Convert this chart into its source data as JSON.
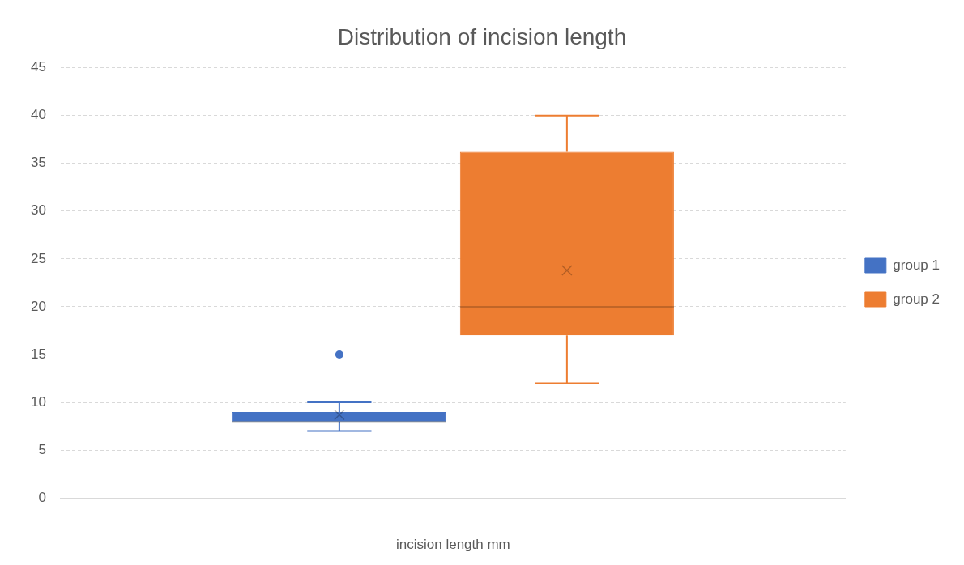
{
  "chart_data": {
    "type": "box",
    "title": "Distribution of incision length",
    "xlabel": "incision length mm",
    "categories": [
      null
    ],
    "series": [
      {
        "name": "group 1",
        "color": "#4472c4",
        "boxes": [
          {
            "low": 7,
            "q1": 8,
            "median": 8,
            "q3": 9,
            "high": 10,
            "mean": 8.7,
            "outliers": [
              15
            ]
          }
        ]
      },
      {
        "name": "group 2",
        "color": "#ed7d31",
        "boxes": [
          {
            "low": 12,
            "q1": 17,
            "median": 20,
            "q3": 36.2,
            "high": 40,
            "mean": 23.8
          }
        ]
      }
    ],
    "ylim": [
      0,
      45
    ],
    "yticks": [
      0,
      5,
      10,
      15,
      20,
      25,
      30,
      35,
      40,
      45
    ],
    "grid": "y",
    "legend": "right"
  }
}
